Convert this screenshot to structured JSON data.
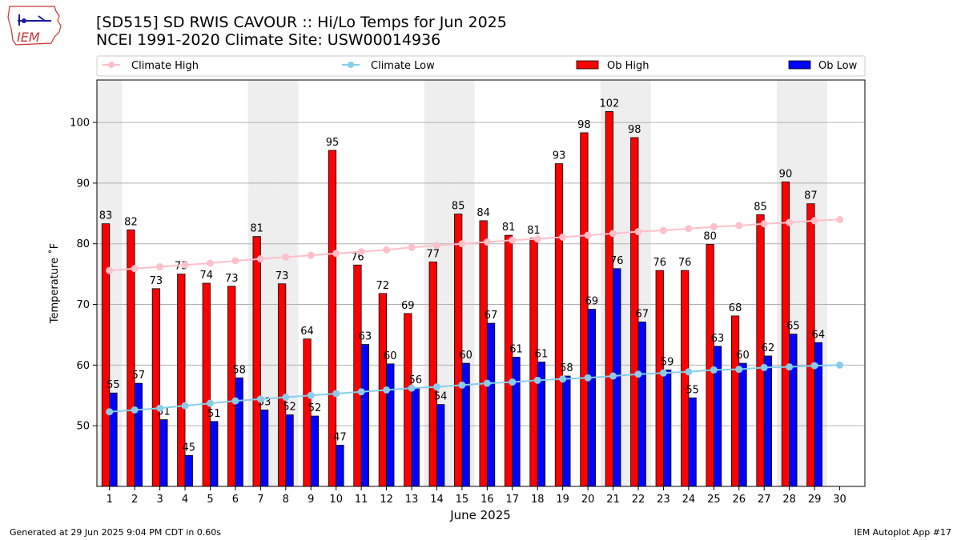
{
  "header": {
    "title_line1": "[SD515] SD RWIS CAVOUR :: Hi/Lo Temps for Jun 2025",
    "title_line2": "NCEI 1991-2020 Climate Site: USW00014936",
    "logo_text": "IEM"
  },
  "footer": {
    "generated": "Generated at 29 Jun 2025 9:04 PM CDT in 0.60s",
    "app": "IEM Autoplot App #17"
  },
  "colors": {
    "ob_high": "#ff0000",
    "ob_low": "#0000ff",
    "climate_high": "#ffc0cb",
    "climate_low": "#87ceeb",
    "weekend_shade": "#eeeeee",
    "grid": "#b0b0b0"
  },
  "chart_data": {
    "type": "bar",
    "xlabel": "June 2025",
    "ylabel": "Temperature ˚F",
    "ylim": [
      40,
      107
    ],
    "yticks": [
      50,
      60,
      70,
      80,
      90,
      100
    ],
    "grid": "horizontal",
    "legend_placement": "top",
    "categories": [
      "1",
      "2",
      "3",
      "4",
      "5",
      "6",
      "7",
      "8",
      "9",
      "10",
      "11",
      "12",
      "13",
      "14",
      "15",
      "16",
      "17",
      "18",
      "19",
      "20",
      "21",
      "22",
      "23",
      "24",
      "25",
      "26",
      "27",
      "28",
      "29",
      "30"
    ],
    "weekend_days": [
      1,
      7,
      8,
      14,
      15,
      21,
      22,
      28,
      29
    ],
    "series": [
      {
        "name": "Climate High",
        "kind": "line",
        "values": [
          75.6,
          75.9,
          76.2,
          76.5,
          76.8,
          77.2,
          77.5,
          77.8,
          78.1,
          78.4,
          78.7,
          79.0,
          79.4,
          79.7,
          80.0,
          80.3,
          80.6,
          80.8,
          81.1,
          81.4,
          81.7,
          82.0,
          82.2,
          82.5,
          82.8,
          83.0,
          83.3,
          83.5,
          83.8,
          84.0
        ]
      },
      {
        "name": "Climate Low",
        "kind": "line",
        "values": [
          52.3,
          52.6,
          52.9,
          53.3,
          53.7,
          54.1,
          54.4,
          54.7,
          55.0,
          55.3,
          55.6,
          55.9,
          56.2,
          56.4,
          56.7,
          57.0,
          57.2,
          57.5,
          57.7,
          57.9,
          58.2,
          58.5,
          58.7,
          58.9,
          59.2,
          59.3,
          59.6,
          59.7,
          59.9,
          60.0
        ]
      },
      {
        "name": "Ob High",
        "kind": "bar",
        "values": [
          83.3,
          82.3,
          72.6,
          75,
          73.5,
          73,
          81.2,
          73.4,
          64.3,
          95.4,
          76.5,
          71.8,
          68.5,
          77,
          84.9,
          83.8,
          81.4,
          80.9,
          93.2,
          98.3,
          101.8,
          97.5,
          75.6,
          75.6,
          79.9,
          68.1,
          84.8,
          90.2,
          86.6,
          null
        ],
        "labels": [
          "83",
          "82",
          "73",
          "75",
          "74",
          "73",
          "81",
          "73",
          "64",
          "95",
          "76",
          "72",
          "69",
          "77",
          "85",
          "84",
          "81",
          "81",
          "93",
          "98",
          "102",
          "98",
          "76",
          "76",
          "80",
          "68",
          "85",
          "90",
          "87",
          ""
        ]
      },
      {
        "name": "Ob Low",
        "kind": "bar",
        "values": [
          55.4,
          57,
          51,
          45.1,
          50.7,
          57.9,
          52.6,
          51.8,
          51.6,
          46.8,
          63.4,
          60.2,
          56.2,
          53.5,
          60.3,
          66.9,
          61.3,
          60.5,
          58.2,
          69.2,
          75.9,
          67.1,
          59.2,
          54.6,
          63.1,
          60.3,
          61.5,
          65.1,
          63.7,
          null
        ],
        "labels": [
          "55",
          "57",
          "51",
          "45",
          "51",
          "58",
          "53",
          "52",
          "52",
          "47",
          "63",
          "60",
          "56",
          "54",
          "60",
          "67",
          "61",
          "61",
          "58",
          "69",
          "76",
          "67",
          "59",
          "55",
          "63",
          "60",
          "62",
          "65",
          "64",
          ""
        ]
      }
    ]
  }
}
